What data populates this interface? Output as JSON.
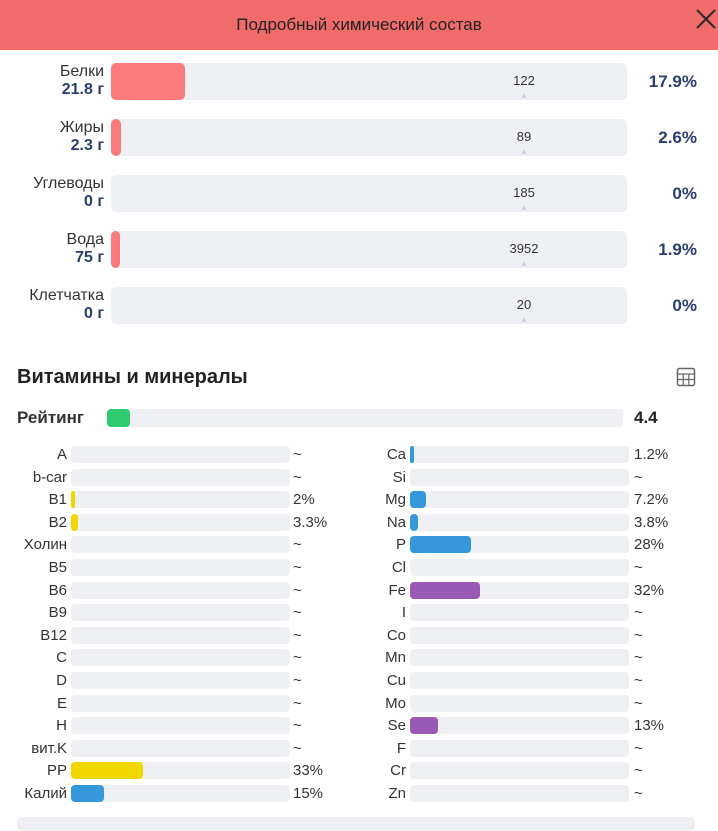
{
  "header": {
    "title": "Подробный химический состав"
  },
  "macros": [
    {
      "name": "Белки",
      "amount": "21.8 г",
      "norm": "122",
      "pct": "17.9%",
      "fill_fraction": 0.143
    },
    {
      "name": "Жиры",
      "amount": "2.3 г",
      "norm": "89",
      "pct": "2.6%",
      "fill_fraction": 0.02
    },
    {
      "name": "Углеводы",
      "amount": "0 г",
      "norm": "185",
      "pct": "0%",
      "fill_fraction": 0
    },
    {
      "name": "Вода",
      "amount": "75 г",
      "norm": "3952",
      "pct": "1.9%",
      "fill_fraction": 0.015
    },
    {
      "name": "Клетчатка",
      "amount": "0 г",
      "norm": "20",
      "pct": "0%",
      "fill_fraction": 0
    }
  ],
  "vitamins_section": {
    "title": "Витамины и минералы",
    "rating_label": "Рейтинг",
    "rating_value": "4.4",
    "rating_fill_fraction": 0.044,
    "colors": {
      "macro": "#fb7a7b",
      "rating": "#2ecc71",
      "vitamin": "#f2d600",
      "mineral_blue": "#3498db",
      "mineral_purple": "#9b59b6",
      "track": "#eef0f3"
    }
  },
  "vitamins": [
    {
      "name": "A",
      "value": "~",
      "fill_fraction": 0,
      "color": "#f2d600"
    },
    {
      "name": "b-car",
      "value": "~",
      "fill_fraction": 0,
      "color": "#f2d600"
    },
    {
      "name": "B1",
      "value": "2%",
      "fill_fraction": 0.02,
      "color": "#f2d600"
    },
    {
      "name": "B2",
      "value": "3.3%",
      "fill_fraction": 0.033,
      "color": "#f2d600"
    },
    {
      "name": "Холин",
      "value": "~",
      "fill_fraction": 0,
      "color": "#f2d600"
    },
    {
      "name": "B5",
      "value": "~",
      "fill_fraction": 0,
      "color": "#f2d600"
    },
    {
      "name": "B6",
      "value": "~",
      "fill_fraction": 0,
      "color": "#f2d600"
    },
    {
      "name": "B9",
      "value": "~",
      "fill_fraction": 0,
      "color": "#f2d600"
    },
    {
      "name": "B12",
      "value": "~",
      "fill_fraction": 0,
      "color": "#f2d600"
    },
    {
      "name": "C",
      "value": "~",
      "fill_fraction": 0,
      "color": "#f2d600"
    },
    {
      "name": "D",
      "value": "~",
      "fill_fraction": 0,
      "color": "#f2d600"
    },
    {
      "name": "E",
      "value": "~",
      "fill_fraction": 0,
      "color": "#f2d600"
    },
    {
      "name": "H",
      "value": "~",
      "fill_fraction": 0,
      "color": "#f2d600"
    },
    {
      "name": "вит.K",
      "value": "~",
      "fill_fraction": 0,
      "color": "#f2d600"
    },
    {
      "name": "PP",
      "value": "33%",
      "fill_fraction": 0.33,
      "color": "#f2d600"
    },
    {
      "name": "Калий",
      "value": "15%",
      "fill_fraction": 0.15,
      "color": "#3498db"
    }
  ],
  "minerals": [
    {
      "name": "Ca",
      "value": "1.2%",
      "fill_fraction": 0.012,
      "color": "#3498db"
    },
    {
      "name": "Si",
      "value": "~",
      "fill_fraction": 0,
      "color": "#3498db"
    },
    {
      "name": "Mg",
      "value": "7.2%",
      "fill_fraction": 0.072,
      "color": "#3498db"
    },
    {
      "name": "Na",
      "value": "3.8%",
      "fill_fraction": 0.038,
      "color": "#3498db"
    },
    {
      "name": "P",
      "value": "28%",
      "fill_fraction": 0.28,
      "color": "#3498db"
    },
    {
      "name": "Cl",
      "value": "~",
      "fill_fraction": 0,
      "color": "#3498db"
    },
    {
      "name": "Fe",
      "value": "32%",
      "fill_fraction": 0.32,
      "color": "#9b59b6"
    },
    {
      "name": "I",
      "value": "~",
      "fill_fraction": 0,
      "color": "#9b59b6"
    },
    {
      "name": "Co",
      "value": "~",
      "fill_fraction": 0,
      "color": "#9b59b6"
    },
    {
      "name": "Mn",
      "value": "~",
      "fill_fraction": 0,
      "color": "#9b59b6"
    },
    {
      "name": "Cu",
      "value": "~",
      "fill_fraction": 0,
      "color": "#9b59b6"
    },
    {
      "name": "Mo",
      "value": "~",
      "fill_fraction": 0,
      "color": "#9b59b6"
    },
    {
      "name": "Se",
      "value": "13%",
      "fill_fraction": 0.13,
      "color": "#9b59b6"
    },
    {
      "name": "F",
      "value": "~",
      "fill_fraction": 0,
      "color": "#9b59b6"
    },
    {
      "name": "Cr",
      "value": "~",
      "fill_fraction": 0,
      "color": "#9b59b6"
    },
    {
      "name": "Zn",
      "value": "~",
      "fill_fraction": 0,
      "color": "#9b59b6"
    }
  ],
  "icons": {
    "close": "close-icon",
    "table": "table-icon"
  }
}
